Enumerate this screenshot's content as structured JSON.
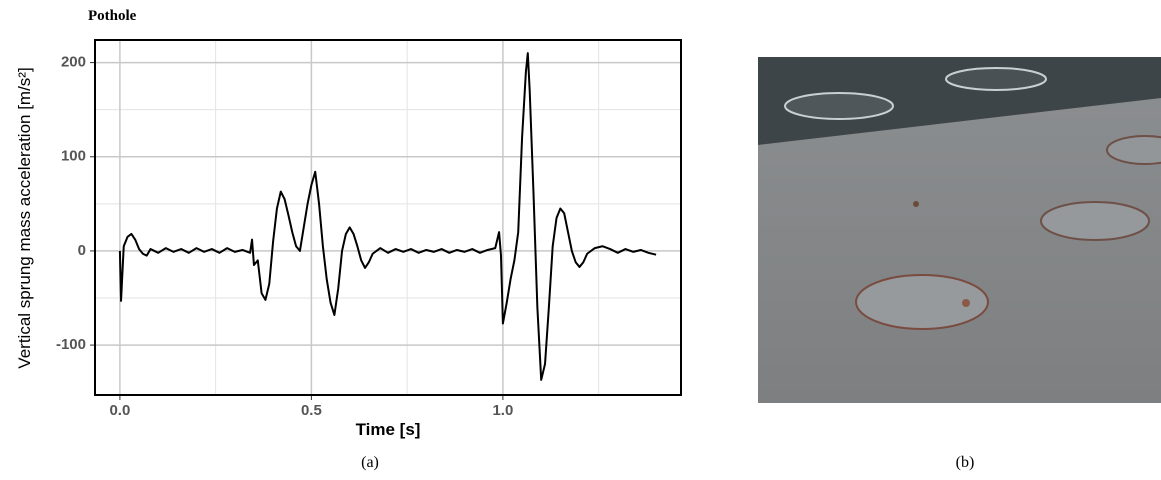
{
  "chart_data": {
    "type": "line",
    "title": "Pothole",
    "xlabel": "Time [s]",
    "ylabel": "Vertical sprung mass acceleration  [m/s²]",
    "xlim": [
      -0.065,
      1.465
    ],
    "ylim": [
      -153,
      224
    ],
    "xticks": [
      {
        "value": 0,
        "label": "0.0"
      },
      0.5,
      {
        "value": 1,
        "label": "1.0"
      }
    ],
    "yticks": [
      -100,
      0,
      100,
      200
    ],
    "xminorticks": [
      0.25,
      0.75,
      1.25
    ],
    "yminorticks": [
      -50,
      50,
      150
    ],
    "grid": true,
    "x": [
      0,
      0.003,
      0.01,
      0.02,
      0.03,
      0.04,
      0.05,
      0.06,
      0.07,
      0.08,
      0.1,
      0.12,
      0.14,
      0.16,
      0.18,
      0.2,
      0.22,
      0.24,
      0.26,
      0.28,
      0.3,
      0.32,
      0.34,
      0.345,
      0.35,
      0.36,
      0.37,
      0.38,
      0.39,
      0.4,
      0.41,
      0.42,
      0.43,
      0.44,
      0.45,
      0.46,
      0.47,
      0.48,
      0.49,
      0.5,
      0.51,
      0.52,
      0.53,
      0.54,
      0.55,
      0.56,
      0.57,
      0.58,
      0.59,
      0.6,
      0.61,
      0.62,
      0.63,
      0.64,
      0.65,
      0.66,
      0.68,
      0.7,
      0.72,
      0.74,
      0.76,
      0.78,
      0.8,
      0.82,
      0.84,
      0.86,
      0.88,
      0.9,
      0.92,
      0.94,
      0.96,
      0.98,
      0.99,
      0.995,
      1.0,
      1.01,
      1.02,
      1.03,
      1.04,
      1.05,
      1.06,
      1.065,
      1.07,
      1.08,
      1.09,
      1.1,
      1.11,
      1.12,
      1.13,
      1.14,
      1.15,
      1.16,
      1.17,
      1.18,
      1.19,
      1.2,
      1.21,
      1.22,
      1.24,
      1.26,
      1.28,
      1.3,
      1.32,
      1.34,
      1.36,
      1.38,
      1.4
    ],
    "series": [
      {
        "name": "Pothole",
        "color": "#000000",
        "values": [
          0,
          -53,
          5,
          15,
          18,
          12,
          2,
          -3,
          -5,
          2,
          -2,
          3,
          -1,
          2,
          -2,
          3,
          -1,
          2,
          -2,
          3,
          -1,
          1,
          -2,
          12,
          -15,
          -10,
          -45,
          -52,
          -35,
          10,
          45,
          63,
          55,
          38,
          20,
          5,
          0,
          25,
          50,
          70,
          84,
          50,
          5,
          -30,
          -55,
          -68,
          -40,
          0,
          18,
          25,
          18,
          5,
          -10,
          -18,
          -12,
          -3,
          3,
          -2,
          2,
          -1,
          2,
          -2,
          1,
          -1,
          2,
          -2,
          1,
          -1,
          2,
          -2,
          1,
          3,
          20,
          -5,
          -77,
          -55,
          -30,
          -10,
          20,
          120,
          190,
          210,
          170,
          60,
          -60,
          -137,
          -120,
          -60,
          5,
          35,
          45,
          40,
          20,
          0,
          -12,
          -17,
          -12,
          -3,
          3,
          5,
          2,
          -2,
          2,
          -1,
          1,
          -2,
          -4
        ]
      }
    ]
  },
  "panel_labels": [
    "(a)",
    "(b)"
  ]
}
